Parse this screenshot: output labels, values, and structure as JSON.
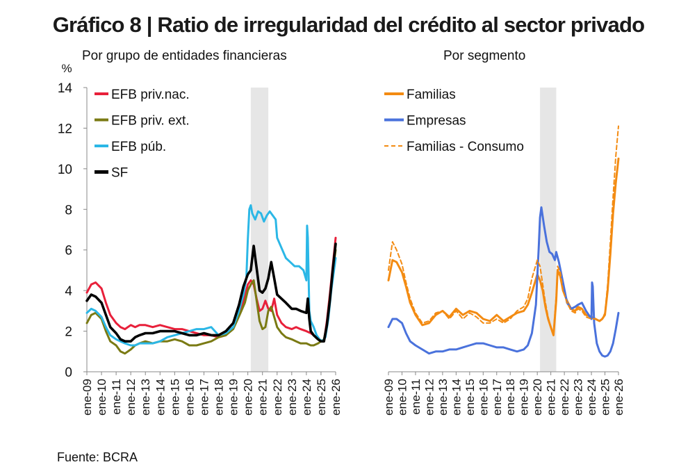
{
  "title": "Gráfico 8 | Ratio de irregularidad del crédito al sector privado",
  "source": "Fuente: BCRA",
  "colors": {
    "red": "#e8203a",
    "olive": "#7a7a13",
    "lightblue": "#2bb7e6",
    "black": "#000000",
    "orange": "#f38b12",
    "blue": "#4a72dc",
    "shade": "#e6e6e6"
  },
  "chart_data": [
    {
      "type": "line",
      "subtitle": "Por grupo de entidades financieras",
      "ylabel": "%",
      "ylim": [
        0,
        14
      ],
      "yticks": [
        0,
        2,
        4,
        6,
        8,
        10,
        12,
        14
      ],
      "x_range": [
        2009.0,
        2026.0
      ],
      "shaded_period": [
        2020.2,
        2021.4
      ],
      "x_tick_labels": [
        "ene-09",
        "ene-10",
        "ene-11",
        "ene-12",
        "ene-13",
        "ene-14",
        "ene-15",
        "ene-16",
        "ene-17",
        "ene-18",
        "ene-19",
        "ene-20",
        "ene-21",
        "ene-22",
        "ene-23",
        "ene-24",
        "ene-25",
        "ene-26"
      ],
      "legend_position": "top-left",
      "series": [
        {
          "name": "EFB priv.nac.",
          "color": "#e8203a",
          "style": "solid",
          "x": [
            2009.0,
            2009.3,
            2009.6,
            2010.0,
            2010.3,
            2010.6,
            2011.0,
            2011.3,
            2011.6,
            2012.0,
            2012.3,
            2012.6,
            2013.0,
            2013.5,
            2014.0,
            2014.5,
            2015.0,
            2015.5,
            2016.0,
            2016.5,
            2017.0,
            2017.5,
            2018.0,
            2018.5,
            2019.0,
            2019.5,
            2019.8,
            2020.0,
            2020.2,
            2020.4,
            2020.6,
            2020.8,
            2021.0,
            2021.2,
            2021.4,
            2021.6,
            2021.8,
            2022.0,
            2022.3,
            2022.6,
            2023.0,
            2023.3,
            2023.6,
            2024.0,
            2024.3,
            2024.5,
            2024.8,
            2025.0,
            2025.2,
            2025.4,
            2025.6,
            2025.8,
            2026.0
          ],
          "values": [
            3.9,
            4.3,
            4.4,
            4.1,
            3.4,
            2.8,
            2.4,
            2.2,
            2.1,
            2.3,
            2.2,
            2.3,
            2.3,
            2.2,
            2.3,
            2.2,
            2.1,
            2.1,
            2.0,
            1.9,
            1.8,
            1.8,
            1.7,
            1.8,
            2.2,
            3.0,
            3.7,
            4.3,
            4.5,
            4.3,
            3.6,
            3.0,
            3.1,
            3.5,
            3.1,
            3.0,
            3.6,
            2.8,
            2.4,
            2.2,
            2.1,
            2.2,
            2.1,
            2.0,
            1.9,
            1.8,
            1.6,
            1.5,
            1.5,
            2.5,
            3.8,
            5.2,
            6.6
          ]
        },
        {
          "name": "EFB priv. ext.",
          "color": "#7a7a13",
          "style": "solid",
          "x": [
            2009.0,
            2009.3,
            2009.6,
            2010.0,
            2010.3,
            2010.6,
            2011.0,
            2011.3,
            2011.6,
            2012.0,
            2012.3,
            2012.6,
            2013.0,
            2013.5,
            2014.0,
            2014.5,
            2015.0,
            2015.5,
            2016.0,
            2016.5,
            2017.0,
            2017.5,
            2018.0,
            2018.5,
            2019.0,
            2019.5,
            2019.8,
            2020.0,
            2020.2,
            2020.4,
            2020.6,
            2020.8,
            2021.0,
            2021.2,
            2021.4,
            2021.6,
            2021.8,
            2022.0,
            2022.3,
            2022.6,
            2023.0,
            2023.3,
            2023.6,
            2024.0,
            2024.3,
            2024.5,
            2024.8,
            2025.0,
            2025.2,
            2025.4,
            2025.6,
            2025.8,
            2026.0
          ],
          "values": [
            2.4,
            2.8,
            2.9,
            2.6,
            2.0,
            1.5,
            1.3,
            1.0,
            0.9,
            1.1,
            1.3,
            1.4,
            1.5,
            1.4,
            1.5,
            1.5,
            1.6,
            1.5,
            1.3,
            1.3,
            1.4,
            1.5,
            1.7,
            1.8,
            2.1,
            2.9,
            3.4,
            4.0,
            4.3,
            4.5,
            3.5,
            2.5,
            2.1,
            2.2,
            3.0,
            3.2,
            2.7,
            2.2,
            1.9,
            1.7,
            1.6,
            1.5,
            1.4,
            1.4,
            1.3,
            1.3,
            1.4,
            1.5,
            1.6,
            2.3,
            3.6,
            4.9,
            6.0
          ]
        },
        {
          "name": "EFB púb.",
          "color": "#2bb7e6",
          "style": "solid",
          "x": [
            2009.0,
            2009.3,
            2009.6,
            2010.0,
            2010.3,
            2010.6,
            2011.0,
            2011.3,
            2011.6,
            2012.0,
            2012.3,
            2012.6,
            2013.0,
            2013.5,
            2014.0,
            2014.5,
            2015.0,
            2015.5,
            2016.0,
            2016.5,
            2017.0,
            2017.5,
            2018.0,
            2018.5,
            2019.0,
            2019.4,
            2019.7,
            2019.9,
            2020.0,
            2020.1,
            2020.2,
            2020.3,
            2020.5,
            2020.7,
            2020.9,
            2021.1,
            2021.3,
            2021.5,
            2021.7,
            2021.9,
            2022.0,
            2022.3,
            2022.6,
            2022.9,
            2023.2,
            2023.5,
            2023.8,
            2024.0,
            2024.05,
            2024.1,
            2024.2,
            2024.3,
            2024.5,
            2024.7,
            2024.9,
            2025.1,
            2025.3,
            2025.5,
            2025.7,
            2026.0
          ],
          "values": [
            2.9,
            3.1,
            3.0,
            2.7,
            2.2,
            1.8,
            1.6,
            1.5,
            1.4,
            1.3,
            1.3,
            1.4,
            1.4,
            1.4,
            1.5,
            1.7,
            1.8,
            1.9,
            2.0,
            2.1,
            2.1,
            2.2,
            1.8,
            1.9,
            2.2,
            3.0,
            3.8,
            4.6,
            6.5,
            8.0,
            8.2,
            7.8,
            7.5,
            7.9,
            7.8,
            7.4,
            7.7,
            7.9,
            7.7,
            7.5,
            6.6,
            6.1,
            5.6,
            5.4,
            5.2,
            5.2,
            5.0,
            4.5,
            7.2,
            6.6,
            3.0,
            2.5,
            2.2,
            1.8,
            1.6,
            1.5,
            1.7,
            2.6,
            4.0,
            5.6
          ]
        },
        {
          "name": "SF",
          "color": "#000000",
          "style": "solid",
          "bold": true,
          "x": [
            2009.0,
            2009.3,
            2009.6,
            2010.0,
            2010.3,
            2010.6,
            2011.0,
            2011.3,
            2011.6,
            2012.0,
            2012.3,
            2012.6,
            2013.0,
            2013.5,
            2014.0,
            2014.5,
            2015.0,
            2015.5,
            2016.0,
            2016.5,
            2017.0,
            2017.5,
            2018.0,
            2018.5,
            2019.0,
            2019.4,
            2019.7,
            2020.0,
            2020.2,
            2020.4,
            2020.6,
            2020.8,
            2021.0,
            2021.2,
            2021.4,
            2021.6,
            2021.8,
            2022.0,
            2022.3,
            2022.6,
            2023.0,
            2023.3,
            2023.6,
            2024.0,
            2024.1,
            2024.2,
            2024.3,
            2024.5,
            2024.8,
            2025.0,
            2025.2,
            2025.4,
            2025.6,
            2025.8,
            2026.0
          ],
          "values": [
            3.5,
            3.8,
            3.7,
            3.4,
            2.8,
            2.2,
            1.9,
            1.6,
            1.5,
            1.5,
            1.7,
            1.8,
            1.9,
            1.9,
            2.0,
            2.0,
            2.0,
            1.9,
            1.8,
            1.8,
            1.9,
            1.8,
            1.8,
            2.0,
            2.4,
            3.3,
            4.2,
            4.8,
            5.0,
            6.2,
            5.1,
            4.0,
            3.9,
            4.1,
            4.6,
            5.4,
            4.6,
            3.8,
            3.6,
            3.4,
            3.1,
            3.1,
            3.0,
            2.9,
            3.6,
            2.6,
            2.0,
            1.8,
            1.6,
            1.5,
            1.5,
            2.3,
            3.5,
            5.0,
            6.3
          ]
        }
      ]
    },
    {
      "type": "line",
      "subtitle": "Por segmento",
      "ylim": [
        0,
        14
      ],
      "x_range": [
        2009.0,
        2026.0
      ],
      "shaded_period": [
        2020.2,
        2021.4
      ],
      "x_tick_labels": [
        "ene-09",
        "ene-10",
        "ene-11",
        "ene-12",
        "ene-13",
        "ene-14",
        "ene-15",
        "ene-16",
        "ene-17",
        "ene-18",
        "ene-19",
        "ene-20",
        "ene-21",
        "ene-22",
        "ene-23",
        "ene-24",
        "ene-25",
        "ene-26"
      ],
      "legend_position": "top-left",
      "series": [
        {
          "name": "Familias",
          "color": "#f38b12",
          "style": "solid",
          "x": [
            2009.0,
            2009.3,
            2009.6,
            2010.0,
            2010.3,
            2010.6,
            2011.0,
            2011.5,
            2012.0,
            2012.5,
            2013.0,
            2013.5,
            2014.0,
            2014.5,
            2015.0,
            2015.5,
            2016.0,
            2016.5,
            2017.0,
            2017.5,
            2018.0,
            2018.5,
            2019.0,
            2019.3,
            2019.6,
            2020.0,
            2020.2,
            2020.4,
            2020.6,
            2020.8,
            2021.0,
            2021.2,
            2021.4,
            2021.5,
            2021.7,
            2021.9,
            2022.2,
            2022.5,
            2022.8,
            2023.0,
            2023.3,
            2023.6,
            2024.0,
            2024.3,
            2024.6,
            2024.8,
            2025.0,
            2025.2,
            2025.4,
            2025.6,
            2025.8,
            2026.0
          ],
          "values": [
            4.5,
            5.5,
            5.4,
            4.9,
            4.2,
            3.4,
            2.8,
            2.3,
            2.4,
            2.8,
            3.0,
            2.7,
            3.1,
            2.8,
            3.0,
            2.9,
            2.6,
            2.5,
            2.8,
            2.5,
            2.7,
            2.9,
            3.0,
            3.3,
            3.9,
            4.8,
            4.5,
            4.0,
            3.2,
            2.6,
            2.2,
            1.8,
            3.5,
            5.0,
            4.7,
            4.0,
            3.5,
            3.1,
            3.0,
            3.2,
            3.1,
            2.8,
            2.7,
            2.6,
            2.5,
            2.6,
            2.8,
            4.0,
            5.8,
            7.8,
            9.3,
            10.5
          ]
        },
        {
          "name": "Empresas",
          "color": "#4a72dc",
          "style": "solid",
          "x": [
            2009.0,
            2009.3,
            2009.6,
            2010.0,
            2010.3,
            2010.6,
            2011.0,
            2011.5,
            2012.0,
            2012.5,
            2013.0,
            2013.5,
            2014.0,
            2014.5,
            2015.0,
            2015.5,
            2016.0,
            2016.5,
            2017.0,
            2017.5,
            2018.0,
            2018.5,
            2019.0,
            2019.3,
            2019.6,
            2019.9,
            2020.1,
            2020.2,
            2020.3,
            2020.5,
            2020.7,
            2020.9,
            2021.1,
            2021.3,
            2021.4,
            2021.6,
            2021.9,
            2022.2,
            2022.5,
            2022.8,
            2023.0,
            2023.3,
            2023.6,
            2024.0,
            2024.05,
            2024.1,
            2024.2,
            2024.4,
            2024.6,
            2024.8,
            2025.0,
            2025.2,
            2025.4,
            2025.6,
            2025.8,
            2026.0
          ],
          "values": [
            2.2,
            2.6,
            2.6,
            2.4,
            1.9,
            1.5,
            1.3,
            1.1,
            0.9,
            1.0,
            1.0,
            1.1,
            1.1,
            1.2,
            1.3,
            1.4,
            1.4,
            1.3,
            1.2,
            1.2,
            1.1,
            1.0,
            1.1,
            1.3,
            1.9,
            3.3,
            6.0,
            7.6,
            8.1,
            7.2,
            6.4,
            5.9,
            5.8,
            5.5,
            5.9,
            5.4,
            4.4,
            3.4,
            3.1,
            3.2,
            3.3,
            3.4,
            3.0,
            2.6,
            4.4,
            4.2,
            2.4,
            1.4,
            1.0,
            0.8,
            0.75,
            0.8,
            1.0,
            1.4,
            2.1,
            2.9
          ]
        },
        {
          "name": "Familias - Consumo",
          "color": "#f38b12",
          "style": "dashed",
          "x": [
            2009.0,
            2009.3,
            2009.6,
            2010.0,
            2010.3,
            2010.6,
            2011.0,
            2011.5,
            2012.0,
            2012.5,
            2013.0,
            2013.5,
            2014.0,
            2014.5,
            2015.0,
            2015.5,
            2016.0,
            2016.5,
            2017.0,
            2017.5,
            2018.0,
            2018.5,
            2019.0,
            2019.3,
            2019.6,
            2020.0,
            2020.2,
            2020.4,
            2020.6,
            2020.8,
            2021.0,
            2021.2,
            2021.4,
            2021.5,
            2021.7,
            2021.9,
            2022.2,
            2022.5,
            2022.8,
            2023.0,
            2023.3,
            2023.6,
            2024.0,
            2024.3,
            2024.6,
            2024.8,
            2025.0,
            2025.2,
            2025.4,
            2025.6,
            2025.8,
            2026.0
          ],
          "values": [
            5.0,
            6.4,
            6.0,
            5.3,
            4.4,
            3.6,
            2.9,
            2.4,
            2.5,
            2.9,
            3.0,
            2.6,
            3.0,
            2.6,
            2.9,
            2.7,
            2.4,
            2.4,
            2.6,
            2.4,
            2.6,
            3.0,
            3.2,
            3.6,
            4.6,
            5.5,
            5.2,
            4.3,
            3.4,
            2.7,
            2.2,
            1.9,
            3.8,
            5.2,
            4.9,
            4.0,
            3.4,
            3.0,
            2.9,
            3.1,
            3.0,
            2.7,
            2.6,
            2.6,
            2.5,
            2.6,
            2.9,
            4.3,
            6.4,
            8.6,
            10.6,
            12.1
          ]
        }
      ]
    }
  ]
}
